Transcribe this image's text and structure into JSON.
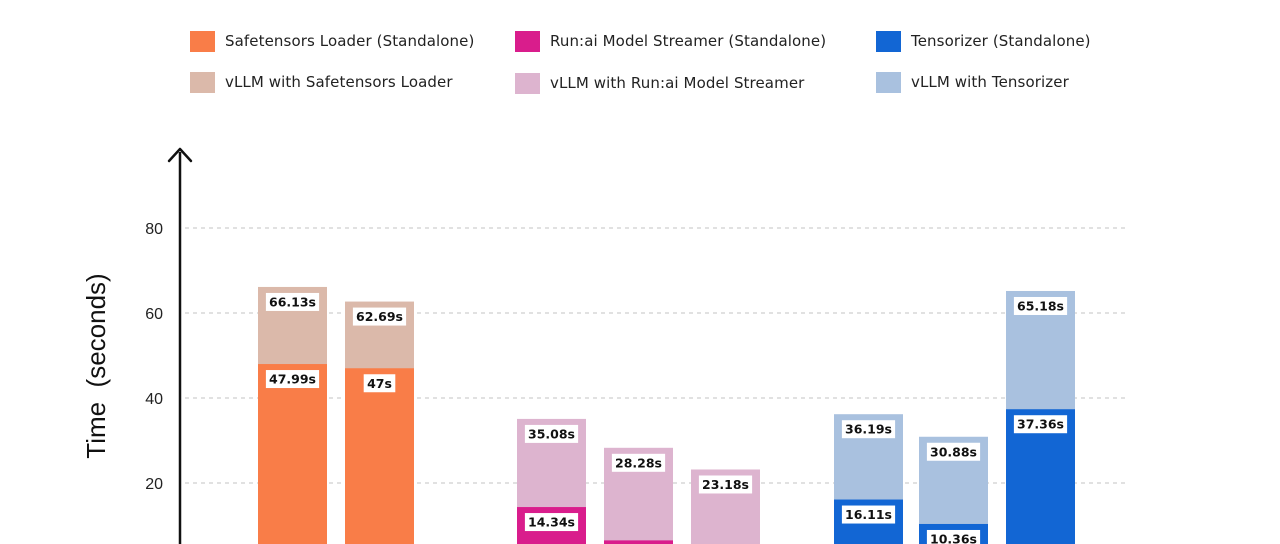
{
  "chart_data": {
    "type": "bar",
    "ylabel": "Time  (seconds)",
    "yticks": [
      20,
      40,
      60,
      80
    ],
    "ylim": [
      0,
      100
    ],
    "grid": true,
    "legend_position": "top",
    "label_suffix": "s",
    "series": [
      {
        "name": "Safetensors Loader (Standalone)",
        "color": "#f97d48",
        "group": 0
      },
      {
        "name": "Run:ai Model Streamer (Standalone)",
        "color": "#d91d8c",
        "group": 1
      },
      {
        "name": "Tensorizer (Standalone)",
        "color": "#1266d4",
        "group": 2
      },
      {
        "name": "vLLM with Safetensors Loader",
        "color": "#dbb9aa",
        "group": 0
      },
      {
        "name": "vLLM with Run:ai Model Streamer",
        "color": "#ddb4cf",
        "group": 1
      },
      {
        "name": "vLLM with Tensorizer",
        "color": "#a9c1df",
        "group": 2
      }
    ],
    "bars": [
      {
        "group": 0,
        "standalone": 47.99,
        "standalone_label": "47.99s",
        "vllm": 66.13,
        "vllm_label": "66.13s"
      },
      {
        "group": 0,
        "standalone": 47,
        "standalone_label": "47s",
        "vllm": 62.69,
        "vllm_label": "62.69s"
      },
      {
        "group": 1,
        "standalone": 14.34,
        "standalone_label": "14.34s",
        "vllm": 35.08,
        "vllm_label": "35.08s"
      },
      {
        "group": 1,
        "standalone": 6.5,
        "standalone_label": null,
        "vllm": 28.28,
        "vllm_label": "28.28s"
      },
      {
        "group": 1,
        "standalone": null,
        "standalone_label": null,
        "vllm": 23.18,
        "vllm_label": "23.18s"
      },
      {
        "group": 2,
        "standalone": 16.11,
        "standalone_label": "16.11s",
        "vllm": 36.19,
        "vllm_label": "36.19s"
      },
      {
        "group": 2,
        "standalone": 10.36,
        "standalone_label": "10.36s",
        "vllm": 30.88,
        "vllm_label": "30.88s"
      },
      {
        "group": 2,
        "standalone": 37.36,
        "standalone_label": "37.36s",
        "vllm": 65.18,
        "vllm_label": "65.18s"
      }
    ]
  }
}
